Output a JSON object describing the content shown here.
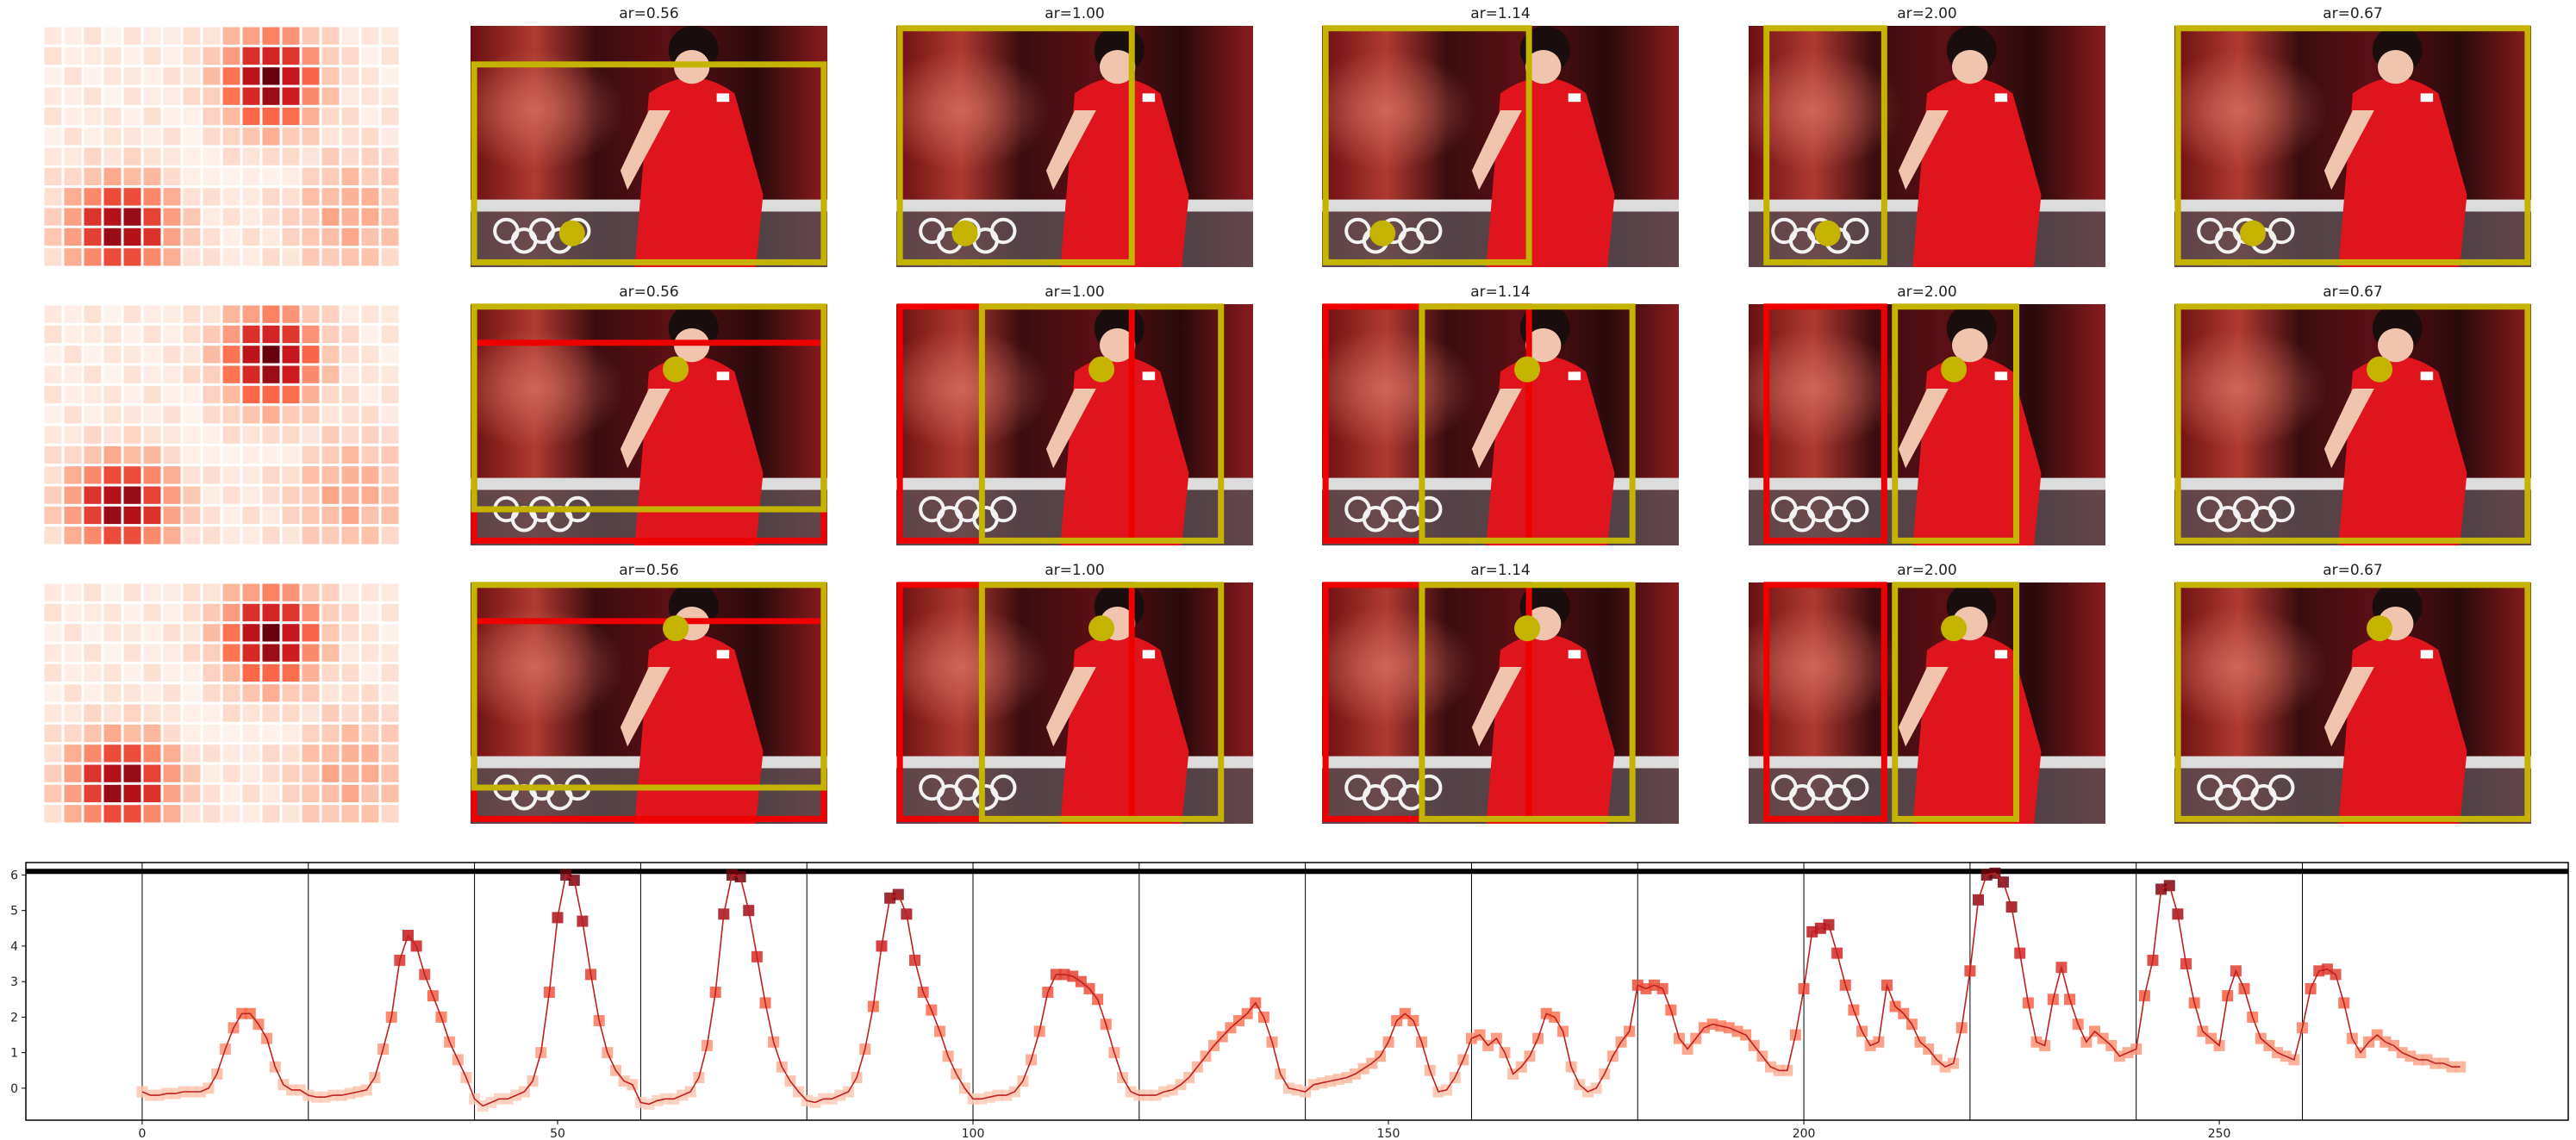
{
  "grid_rows": [
    {
      "panels": [
        {
          "title": "ar=0.56",
          "box_colors": [
            "#c4b400"
          ],
          "dot": "bottom-left"
        },
        {
          "title": "ar=1.00",
          "box_colors": [
            "#c4b400"
          ],
          "dot": "bottom-left"
        },
        {
          "title": "ar=1.14",
          "box_colors": [
            "#c4b400"
          ],
          "dot": "bottom-left"
        },
        {
          "title": "ar=2.00",
          "box_colors": [
            "#c4b400"
          ],
          "dot": "bottom-left"
        },
        {
          "title": "ar=0.67",
          "box_colors": [
            "#c4b400"
          ],
          "dot": "bottom-left"
        }
      ]
    },
    {
      "panels": [
        {
          "title": "ar=0.56",
          "box_colors": [
            "#ee0000",
            "#c4b400"
          ],
          "dot": "face"
        },
        {
          "title": "ar=1.00",
          "box_colors": [
            "#ee0000",
            "#c4b400"
          ],
          "dot": "face"
        },
        {
          "title": "ar=1.14",
          "box_colors": [
            "#ee0000",
            "#c4b400"
          ],
          "dot": "face"
        },
        {
          "title": "ar=2.00",
          "box_colors": [
            "#ee0000",
            "#c4b400"
          ],
          "dot": "face"
        },
        {
          "title": "ar=0.67",
          "box_colors": [
            "#c4b400"
          ],
          "dot": "face"
        }
      ]
    },
    {
      "panels": [
        {
          "title": "ar=0.56",
          "box_colors": [
            "#ee0000",
            "#c4b400"
          ],
          "dot": "face"
        },
        {
          "title": "ar=1.00",
          "box_colors": [
            "#ee0000",
            "#c4b400"
          ],
          "dot": "face"
        },
        {
          "title": "ar=1.14",
          "box_colors": [
            "#ee0000",
            "#c4b400"
          ],
          "dot": "face"
        },
        {
          "title": "ar=2.00",
          "box_colors": [
            "#ee0000",
            "#c4b400"
          ],
          "dot": "face"
        },
        {
          "title": "ar=0.67",
          "box_colors": [
            "#c4b400"
          ],
          "dot": "face"
        }
      ]
    }
  ],
  "heatmap": {
    "colormap": "Reds",
    "cols": 18,
    "rows": 12,
    "hot_regions": [
      "top-center",
      "bottom-left"
    ]
  },
  "colors": {
    "box_yellow": "#c4b400",
    "box_red": "#ee0000",
    "line": "#c0201f",
    "threshold": "#000000"
  },
  "chart_data": {
    "type": "line",
    "title": "",
    "xlabel": "",
    "ylabel": "",
    "xlim": [
      -14,
      292
    ],
    "ylim": [
      -0.9,
      6.35
    ],
    "xticks": [
      0,
      50,
      100,
      150,
      200,
      250
    ],
    "yticks": [
      0,
      1,
      2,
      3,
      4,
      5,
      6
    ],
    "threshold": 6.1,
    "vlines": [
      0,
      20,
      40,
      60,
      80,
      100,
      120,
      140,
      160,
      180,
      200,
      220,
      240,
      260
    ],
    "series": [
      {
        "x": [
          0,
          1,
          2,
          3,
          4,
          5,
          6,
          7,
          8,
          9,
          10,
          11,
          12,
          13,
          14,
          15,
          16,
          17,
          18,
          19,
          20,
          21,
          22,
          23,
          24,
          25,
          26,
          27,
          28,
          29,
          30,
          31,
          32,
          33,
          34,
          35,
          36,
          37,
          38,
          39,
          40,
          41,
          42,
          43,
          44,
          45,
          46,
          47,
          48,
          49,
          50,
          51,
          52,
          53,
          54,
          55,
          56,
          57,
          58,
          59,
          60,
          61,
          62,
          63,
          64,
          65,
          66,
          67,
          68,
          69,
          70,
          71,
          72,
          73,
          74,
          75,
          76,
          77,
          78,
          79,
          80,
          81,
          82,
          83,
          84,
          85,
          86,
          87,
          88,
          89,
          90,
          91,
          92,
          93,
          94,
          95,
          96,
          97,
          98,
          99,
          100,
          101,
          102,
          103,
          104,
          105,
          106,
          107,
          108,
          109,
          110,
          111,
          112,
          113,
          114,
          115,
          116,
          117,
          118,
          119,
          120,
          121,
          122,
          123,
          124,
          125,
          126,
          127,
          128,
          129,
          130,
          131,
          132,
          133,
          134,
          135,
          136,
          137,
          138,
          139,
          140,
          141,
          142,
          143,
          144,
          145,
          146,
          147,
          148,
          149,
          150,
          151,
          152,
          153,
          154,
          155,
          156,
          157,
          158,
          159,
          160,
          161,
          162,
          163,
          164,
          165,
          166,
          167,
          168,
          169,
          170,
          171,
          172,
          173,
          174,
          175,
          176,
          177,
          178,
          179,
          180,
          181,
          182,
          183,
          184,
          185,
          186,
          187,
          188,
          189,
          190,
          191,
          192,
          193,
          194,
          195,
          196,
          197,
          198,
          199,
          200,
          201,
          202,
          203,
          204,
          205,
          206,
          207,
          208,
          209,
          210,
          211,
          212,
          213,
          214,
          215,
          216,
          217,
          218,
          219,
          220,
          221,
          222,
          223,
          224,
          225,
          226,
          227,
          228,
          229,
          230,
          231,
          232,
          233,
          234,
          235,
          236,
          237,
          238,
          239,
          240,
          241,
          242,
          243,
          244,
          245,
          246,
          247,
          248,
          249,
          250,
          251,
          252,
          253,
          254,
          255,
          256,
          257,
          258,
          259,
          260,
          261,
          262,
          263,
          264,
          265,
          266,
          267,
          268,
          269,
          270,
          271,
          272,
          273,
          274,
          275,
          276,
          277,
          278,
          279
        ],
        "values": [
          -0.1,
          -0.2,
          -0.2,
          -0.15,
          -0.15,
          -0.1,
          -0.1,
          -0.1,
          0.0,
          0.4,
          1.1,
          1.7,
          2.1,
          2.1,
          1.8,
          1.4,
          0.6,
          0.1,
          -0.05,
          -0.05,
          -0.2,
          -0.25,
          -0.25,
          -0.2,
          -0.2,
          -0.15,
          -0.1,
          -0.05,
          0.3,
          1.1,
          2.0,
          3.6,
          4.3,
          4.0,
          3.2,
          2.6,
          2.0,
          1.3,
          0.8,
          0.3,
          -0.3,
          -0.5,
          -0.4,
          -0.3,
          -0.3,
          -0.2,
          -0.1,
          0.2,
          1.0,
          2.7,
          4.8,
          6.0,
          5.85,
          4.7,
          3.2,
          1.9,
          1.0,
          0.5,
          0.2,
          0.1,
          -0.4,
          -0.45,
          -0.35,
          -0.3,
          -0.3,
          -0.2,
          -0.1,
          0.3,
          1.2,
          2.7,
          4.9,
          6.0,
          5.95,
          5.0,
          3.7,
          2.4,
          1.3,
          0.6,
          0.2,
          -0.1,
          -0.35,
          -0.4,
          -0.3,
          -0.3,
          -0.2,
          -0.1,
          0.3,
          1.1,
          2.3,
          4.0,
          5.35,
          5.45,
          4.9,
          3.6,
          2.7,
          2.2,
          1.6,
          0.9,
          0.4,
          0.0,
          -0.3,
          -0.3,
          -0.25,
          -0.2,
          -0.2,
          -0.1,
          0.2,
          0.8,
          1.6,
          2.7,
          3.2,
          3.2,
          3.15,
          3.0,
          2.8,
          2.5,
          1.8,
          1.0,
          0.3,
          -0.1,
          -0.2,
          -0.2,
          -0.2,
          -0.1,
          -0.05,
          0.1,
          0.3,
          0.6,
          0.9,
          1.2,
          1.45,
          1.7,
          1.9,
          2.1,
          2.4,
          2.0,
          1.3,
          0.4,
          0.0,
          -0.05,
          -0.1,
          0.1,
          0.15,
          0.2,
          0.25,
          0.3,
          0.4,
          0.55,
          0.7,
          0.9,
          1.3,
          1.9,
          2.1,
          1.9,
          1.3,
          0.5,
          -0.1,
          -0.05,
          0.3,
          0.8,
          1.4,
          1.5,
          1.2,
          1.4,
          1.0,
          0.4,
          0.6,
          0.9,
          1.4,
          2.1,
          2.0,
          1.6,
          0.6,
          0.1,
          -0.1,
          0.0,
          0.4,
          0.9,
          1.3,
          1.6,
          2.9,
          2.8,
          2.9,
          2.8,
          2.2,
          1.4,
          1.1,
          1.4,
          1.7,
          1.8,
          1.75,
          1.7,
          1.6,
          1.5,
          1.2,
          0.9,
          0.6,
          0.5,
          0.5,
          1.5,
          2.8,
          4.4,
          4.5,
          4.6,
          3.8,
          2.9,
          2.2,
          1.6,
          1.2,
          1.3,
          2.9,
          2.3,
          2.1,
          1.8,
          1.3,
          1.1,
          0.8,
          0.6,
          0.7,
          1.7,
          3.3,
          5.3,
          6.0,
          6.05,
          5.8,
          5.1,
          3.8,
          2.4,
          1.3,
          1.2,
          2.5,
          3.4,
          2.5,
          1.8,
          1.3,
          1.6,
          1.4,
          1.2,
          0.9,
          1.0,
          1.1,
          2.6,
          3.6,
          5.6,
          5.7,
          4.9,
          3.5,
          2.4,
          1.6,
          1.4,
          1.2,
          2.6,
          3.3,
          2.8,
          2.0,
          1.4,
          1.2,
          1.0,
          0.9,
          0.8,
          1.7,
          2.8,
          3.3,
          3.35,
          3.2,
          2.4,
          1.4,
          1.0,
          1.3,
          1.5,
          1.3,
          1.2,
          1.0,
          0.9,
          0.8,
          0.8,
          0.7,
          0.7,
          0.6,
          0.6
        ]
      }
    ]
  }
}
